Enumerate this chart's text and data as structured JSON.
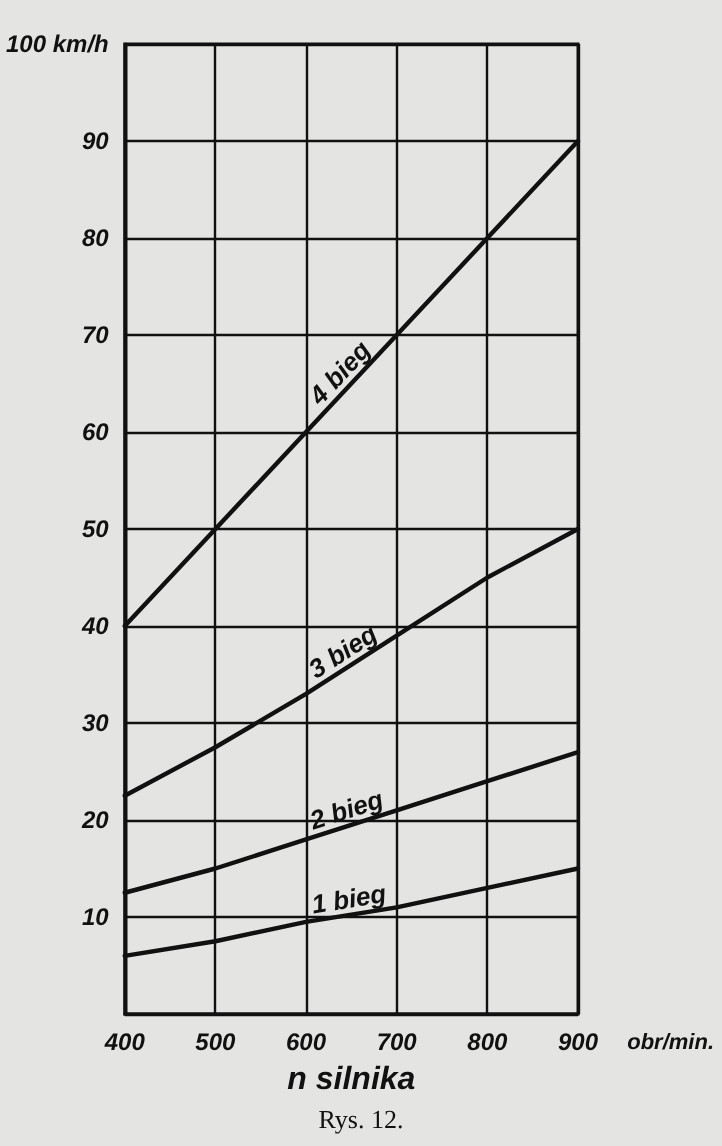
{
  "chart_data": {
    "type": "line",
    "xlabel": "n silnika",
    "annotations": [
      "obr/min.",
      "Rys. 12."
    ],
    "x": [
      400,
      500,
      600,
      700,
      800,
      900
    ],
    "series": [
      {
        "name": "4 bieg",
        "color": "#111111",
        "values": [
          40,
          50,
          60,
          70,
          80,
          90
        ]
      },
      {
        "name": "3 bieg",
        "color": "#111111",
        "values": [
          22.5,
          27.5,
          33,
          39,
          45,
          50
        ]
      },
      {
        "name": "2 bieg",
        "color": "#111111",
        "values": [
          12.5,
          15,
          18,
          21,
          24,
          27
        ]
      },
      {
        "name": "1 bieg",
        "color": "#111111",
        "values": [
          6,
          7.5,
          9.5,
          11,
          13,
          15
        ]
      }
    ],
    "xlim": [
      400,
      900
    ],
    "xticks": [
      400,
      500,
      600,
      700,
      800,
      900
    ],
    "ylim": [
      0,
      100
    ],
    "yticks": [
      {
        "value": 0,
        "label": null
      },
      10,
      20,
      30,
      40,
      50,
      60,
      70,
      80,
      {
        "value": 90,
        "label": "90"
      },
      {
        "value": 100,
        "label": "100 km/h"
      }
    ],
    "grid": true,
    "marker": "none",
    "line_style": "solid",
    "legend": false
  }
}
